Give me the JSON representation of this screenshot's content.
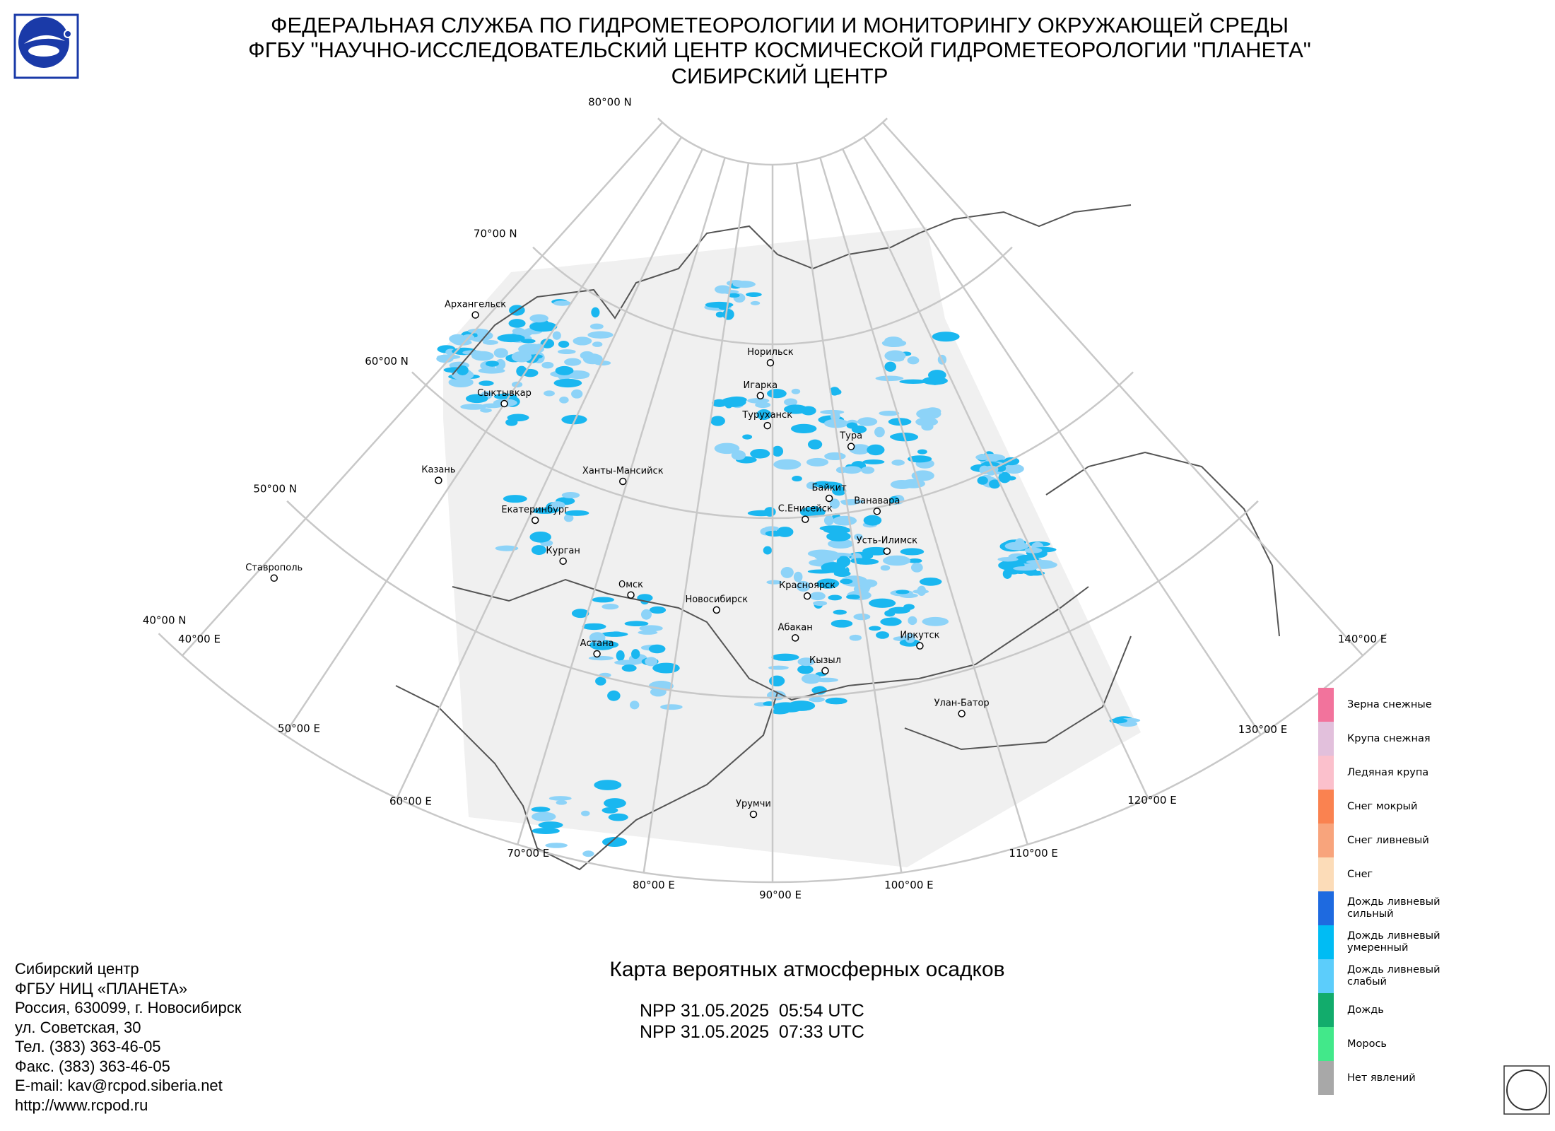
{
  "header": {
    "lines": [
      "ФЕДЕРАЛЬНАЯ СЛУЖБА ПО ГИДРОМЕТЕОРОЛОГИИ И МОНИТОРИНГУ ОКРУЖАЮЩЕЙ СРЕДЫ",
      "ФГБУ \"НАУЧНО-ИССЛЕДОВАТЕЛЬСКИЙ ЦЕНТР КОСМИЧЕСКОЙ ГИДРОМЕТЕОРОЛОГИИ \"ПЛАНЕТА\"",
      "СИБИРСКИЙ ЦЕНТР"
    ]
  },
  "map": {
    "parallel_labels": [
      "80°00 N",
      "70°00 N",
      "60°00 N",
      "50°00 N",
      "40°00 N"
    ],
    "meridian_labels": [
      "40°00 E",
      "50°00 E",
      "60°00 E",
      "70°00 E",
      "80°00 E",
      "90°00 E",
      "100°00 E",
      "110°00 E",
      "120°00 E",
      "130°00 E",
      "140°00 E"
    ],
    "cities": [
      "Архангельск",
      "Сыктывкар",
      "Казань",
      "Ставрополь",
      "Екатеринбург",
      "Курган",
      "Омск",
      "Астана",
      "Ханты-Мансийск",
      "Новосибирск",
      "Норильск",
      "Игарка",
      "Туруханск",
      "Тура",
      "Байкит",
      "Ванавара",
      "С.Енисейск",
      "Усть-Илимск",
      "Красноярск",
      "Абакан",
      "Кызыл",
      "Иркутск",
      "Улан-Батор",
      "Урумчи"
    ]
  },
  "legend": [
    {
      "label": "Зерна снежные",
      "color": "#f2739c"
    },
    {
      "label": "Крупа снежная",
      "color": "#e2c0dc"
    },
    {
      "label": "Ледяная крупа",
      "color": "#fbc0cc"
    },
    {
      "label": "Снег мокрый",
      "color": "#fa8250"
    },
    {
      "label": "Снег ливневый",
      "color": "#f8a47c"
    },
    {
      "label": "Снег",
      "color": "#fcdcb8"
    },
    {
      "label": "Дождь ливневый сильный",
      "color": "#1e6ae0"
    },
    {
      "label": "Дождь ливневый умеренный",
      "color": "#00bcf4"
    },
    {
      "label": "Дождь ливневый слабый",
      "color": "#5ccdfb"
    },
    {
      "label": "Дождь",
      "color": "#12ac6c"
    },
    {
      "label": "Морось",
      "color": "#42e88a"
    },
    {
      "label": "Нет явлений",
      "color": "#a8a8a8"
    }
  ],
  "title": "Карта вероятных атмосферных осадков",
  "passes": [
    "NPP 31.05.2025  05:54 UTC",
    "NPP 31.05.2025  07:33 UTC"
  ],
  "footer": [
    "Сибирский центр",
    "ФГБУ НИЦ «ПЛАНЕТА»",
    "Россия, 630099, г. Новосибирск",
    "ул. Советская, 30",
    "Тел. (383) 363-46-05",
    "Факс. (383) 363-46-05",
    "E-mail: kav@rcpod.siberia.net",
    "http://www.rcpod.ru"
  ]
}
